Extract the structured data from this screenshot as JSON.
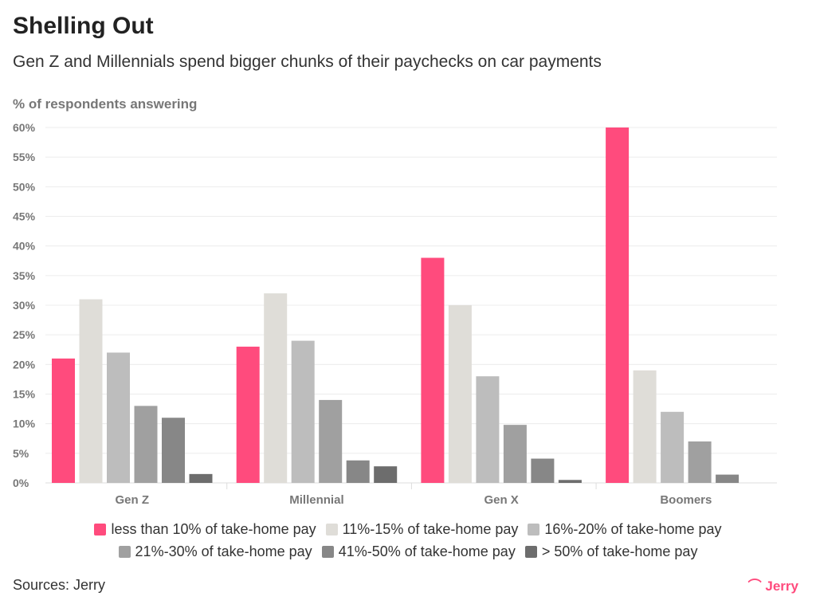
{
  "chart_data": {
    "type": "bar",
    "title": "Shelling Out",
    "subtitle": "Gen Z and Millennials spend bigger chunks of their paychecks on car payments",
    "ylabel": "% of respondents answering",
    "xlabel": "",
    "ylim": [
      0,
      60
    ],
    "yticks": [
      "0%",
      "5%",
      "10%",
      "15%",
      "20%",
      "25%",
      "30%",
      "35%",
      "40%",
      "45%",
      "50%",
      "55%",
      "60%"
    ],
    "grid": true,
    "legend_position": "bottom",
    "categories": [
      "Gen Z",
      "Millennial",
      "Gen X",
      "Boomers"
    ],
    "series": [
      {
        "name": "less than 10% of take-home pay",
        "color": "#ff4b7d",
        "values": [
          21,
          23,
          38,
          60
        ]
      },
      {
        "name": "11%-15% of take-home pay",
        "color": "#dfddd8",
        "values": [
          31,
          32,
          30,
          19
        ]
      },
      {
        "name": "16%-20% of take-home pay",
        "color": "#bdbdbd",
        "values": [
          22,
          24,
          18,
          12
        ]
      },
      {
        "name": "21%-30% of take-home pay",
        "color": "#a0a0a0",
        "values": [
          13,
          14,
          9.8,
          7
        ]
      },
      {
        "name": "41%-50% of take-home pay",
        "color": "#878787",
        "values": [
          11,
          3.8,
          4.1,
          1.4
        ]
      },
      {
        "name": "> 50% of take-home pay",
        "color": "#6d6d6d",
        "values": [
          1.5,
          2.8,
          0.5,
          0
        ]
      }
    ]
  },
  "source": "Sources: Jerry",
  "logo": "Jerry"
}
